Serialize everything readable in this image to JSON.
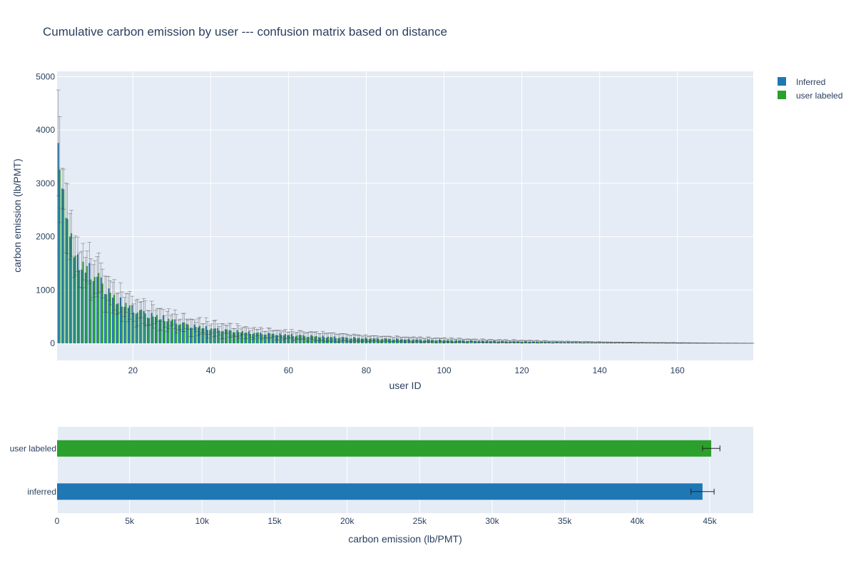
{
  "chart_data": [
    {
      "type": "bar",
      "title": "Cumulative carbon emission by user --- confusion matrix based on distance",
      "xlabel": "user ID",
      "ylabel": "carbon emission (lb/PMT)",
      "xlim": [
        0.5,
        179.5
      ],
      "ylim": [
        -320,
        5100
      ],
      "xticks": [
        20,
        40,
        60,
        80,
        100,
        120,
        140,
        160
      ],
      "yticks": [
        0,
        1000,
        2000,
        3000,
        4000,
        5000
      ],
      "grid": true,
      "legend": "top-right, outside",
      "series": [
        {
          "name": "Inferred",
          "color": "#1f77b4"
        },
        {
          "name": "user labeled",
          "color": "#2ca02c"
        }
      ],
      "x": [
        1,
        2,
        3,
        4,
        5,
        6,
        7,
        8,
        9,
        10,
        12,
        15,
        20,
        25,
        30,
        35,
        40,
        50,
        60,
        70,
        80,
        90,
        100,
        110,
        120,
        130,
        140,
        150,
        160,
        170,
        179
      ],
      "values_inferred": [
        3450,
        3300,
        2200,
        1950,
        1800,
        1500,
        1450,
        1400,
        1350,
        1300,
        1150,
        850,
        650,
        520,
        430,
        330,
        280,
        200,
        160,
        120,
        95,
        75,
        60,
        45,
        35,
        25,
        18,
        12,
        8,
        4,
        2
      ],
      "values_user_labeled": [
        3300,
        3200,
        2250,
        1900,
        1750,
        1480,
        1420,
        1380,
        1320,
        1280,
        1120,
        830,
        630,
        500,
        420,
        320,
        270,
        195,
        155,
        115,
        92,
        72,
        58,
        43,
        33,
        24,
        17,
        11,
        7,
        4,
        2
      ],
      "errors": [
        1400,
        550,
        900,
        650,
        500,
        500,
        450,
        450,
        500,
        500,
        450,
        350,
        300,
        250,
        200,
        180,
        170,
        120,
        100,
        110,
        70,
        60,
        50,
        35,
        30,
        20,
        15,
        10,
        8,
        4,
        2
      ]
    },
    {
      "type": "bar",
      "orientation": "horizontal",
      "xlabel": "carbon emission (lb/PMT)",
      "xlim": [
        0,
        48000
      ],
      "xticks": [
        0,
        5000,
        10000,
        15000,
        20000,
        25000,
        30000,
        35000,
        40000,
        45000
      ],
      "xtick_labels": [
        "0",
        "5k",
        "10k",
        "15k",
        "20k",
        "25k",
        "30k",
        "35k",
        "40k",
        "45k"
      ],
      "categories": [
        "inferred",
        "user labeled"
      ],
      "values": [
        44500,
        45100
      ],
      "errors": [
        800,
        600
      ],
      "colors": [
        "#1f77b4",
        "#2ca02c"
      ]
    }
  ]
}
